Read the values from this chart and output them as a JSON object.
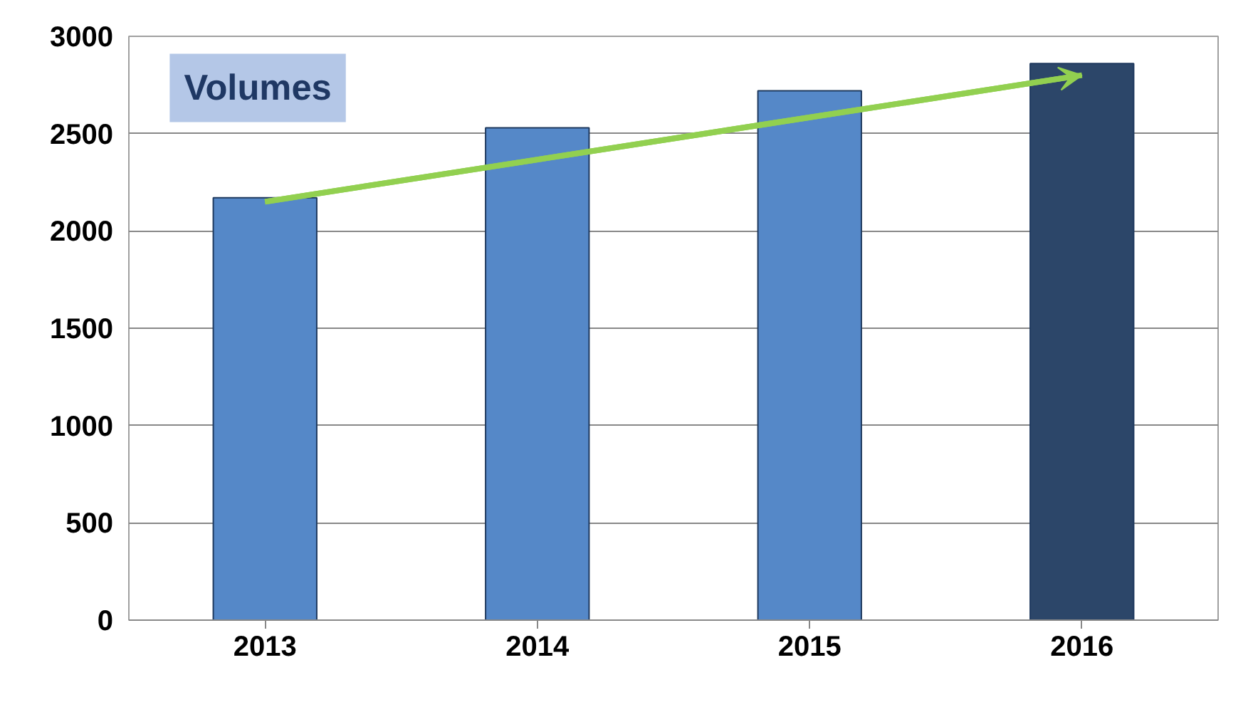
{
  "chart_data": {
    "type": "bar",
    "title": "Volumes",
    "categories": [
      "2013",
      "2014",
      "2015",
      "2016"
    ],
    "values": [
      2170,
      2530,
      2720,
      2860
    ],
    "colors": [
      "#5588c8",
      "#5588c8",
      "#5588c8",
      "#2c4669"
    ],
    "series": [
      {
        "type": "line",
        "values": [
          2150,
          null,
          null,
          2800
        ],
        "color": "#92d050"
      }
    ],
    "ylim": [
      0,
      3000
    ],
    "yticks": [
      0,
      500,
      1000,
      1500,
      2000,
      2500,
      3000
    ],
    "grid": "y"
  }
}
